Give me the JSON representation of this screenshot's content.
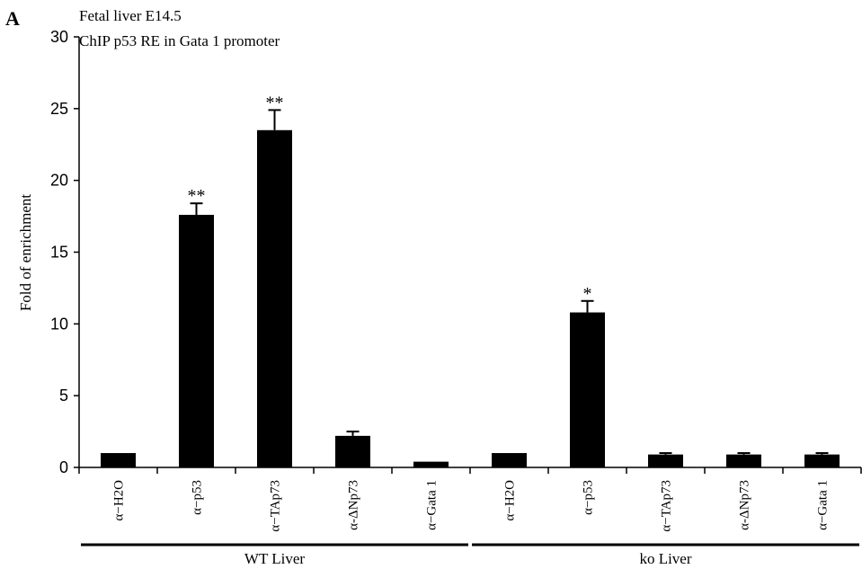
{
  "panel_letter": "A",
  "chart_data": {
    "type": "bar",
    "title_lines": [
      "Fetal liver E14.5",
      "ChIP p53 RE in Gata 1 promoter"
    ],
    "ylabel": "Fold of enrichment",
    "xlabel": "",
    "ylim": [
      0,
      30
    ],
    "yticks": [
      0,
      5,
      10,
      15,
      20,
      25,
      30
    ],
    "grid": false,
    "categories": [
      "α−H2O",
      "α−p53",
      "α−TAp73",
      "α-ΔNp73",
      "α−Gata 1",
      "α−H2O",
      "α−p53",
      "α−TAp73",
      "α-ΔNp73",
      "α−Gata 1"
    ],
    "values": [
      1.0,
      17.6,
      23.5,
      2.2,
      0.4,
      1.0,
      10.8,
      0.9,
      0.9,
      0.9
    ],
    "errors": [
      0,
      0.8,
      1.4,
      0.3,
      0,
      0,
      0.8,
      0.1,
      0.1,
      0.1
    ],
    "significance": [
      "",
      "**",
      "**",
      "",
      "",
      "",
      "*",
      "",
      "",
      ""
    ],
    "groups": [
      {
        "label": "WT Liver",
        "start": 0,
        "end": 4
      },
      {
        "label": "ko Liver",
        "start": 5,
        "end": 9
      }
    ],
    "bar_color": "#000000"
  }
}
